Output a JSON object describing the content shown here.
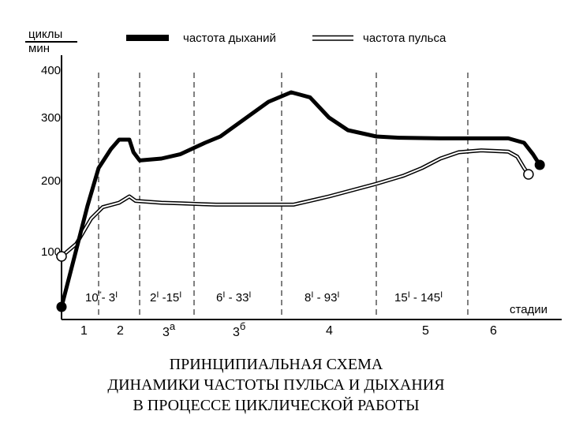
{
  "chart_data": {
    "type": "line",
    "ylabel_top": "циклы",
    "ylabel_bottom": "мин",
    "xlabel": "стадии",
    "ylim": [
      0,
      400
    ],
    "yticks": [
      100,
      200,
      300,
      400
    ],
    "legend": {
      "position": "top",
      "items": [
        {
          "label": "частота дыханий",
          "style": "thick-black"
        },
        {
          "label": "частота пульса",
          "style": "double-line"
        }
      ]
    },
    "stages": [
      "1",
      "2",
      "3",
      "3",
      "4",
      "5",
      "6"
    ],
    "stage_superscripts": [
      "",
      "",
      "а",
      "б",
      "",
      "",
      ""
    ],
    "stage_durations": [
      {
        "main": "10",
        "prime1": "\"",
        "mid": "- 3",
        "prime2": "I"
      },
      {
        "main": "2",
        "prime1": "I",
        "mid": " -15",
        "prime2": "I"
      },
      {
        "main": "6",
        "prime1": "I",
        "mid": " - 33",
        "prime2": "I"
      },
      {
        "main": "8",
        "prime1": "I",
        "mid": " - 93",
        "prime2": "I"
      },
      {
        "main": "15",
        "prime1": "I",
        "mid": " - 145",
        "prime2": "I"
      }
    ],
    "series": [
      {
        "name": "частота дыханий",
        "points": [
          [
            0.0,
            20
          ],
          [
            0.35,
            100
          ],
          [
            0.7,
            180
          ],
          [
            1.0,
            240
          ],
          [
            1.3,
            270
          ],
          [
            1.5,
            285
          ],
          [
            1.75,
            285
          ],
          [
            1.85,
            265
          ],
          [
            2.0,
            252
          ],
          [
            2.4,
            255
          ],
          [
            2.75,
            262
          ],
          [
            3.25,
            280
          ],
          [
            3.6,
            290
          ],
          [
            4.2,
            320
          ],
          [
            4.7,
            345
          ],
          [
            5.2,
            360
          ],
          [
            5.6,
            352
          ],
          [
            6.0,
            320
          ],
          [
            6.4,
            300
          ],
          [
            7.0,
            290
          ],
          [
            7.5,
            288
          ],
          [
            8.4,
            287
          ],
          [
            8.95,
            287
          ],
          [
            9.9,
            287
          ],
          [
            10.25,
            280
          ],
          [
            10.45,
            262
          ],
          [
            10.6,
            245
          ]
        ]
      },
      {
        "name": "частота пульса",
        "points": [
          [
            0.0,
            100
          ],
          [
            0.4,
            120
          ],
          [
            0.8,
            160
          ],
          [
            1.1,
            178
          ],
          [
            1.5,
            185
          ],
          [
            1.75,
            195
          ],
          [
            1.9,
            188
          ],
          [
            2.4,
            185
          ],
          [
            2.75,
            184
          ],
          [
            3.5,
            182
          ],
          [
            4.7,
            182
          ],
          [
            5.25,
            182
          ],
          [
            5.6,
            188
          ],
          [
            6.0,
            195
          ],
          [
            6.5,
            205
          ],
          [
            7.0,
            215
          ],
          [
            7.6,
            228
          ],
          [
            8.0,
            240
          ],
          [
            8.4,
            255
          ],
          [
            8.8,
            265
          ],
          [
            9.3,
            268
          ],
          [
            9.9,
            266
          ],
          [
            10.1,
            258
          ],
          [
            10.25,
            240
          ],
          [
            10.35,
            230
          ]
        ]
      }
    ]
  },
  "caption": {
    "line1": "ПРИНЦИПИАЛЬНАЯ СХЕМА",
    "line2": "ДИНАМИКИ ЧАСТОТЫ ПУЛЬСА И ДЫХАНИЯ",
    "line3": "В ПРОЦЕССЕ ЦИКЛИЧЕСКОЙ РАБОТЫ"
  }
}
